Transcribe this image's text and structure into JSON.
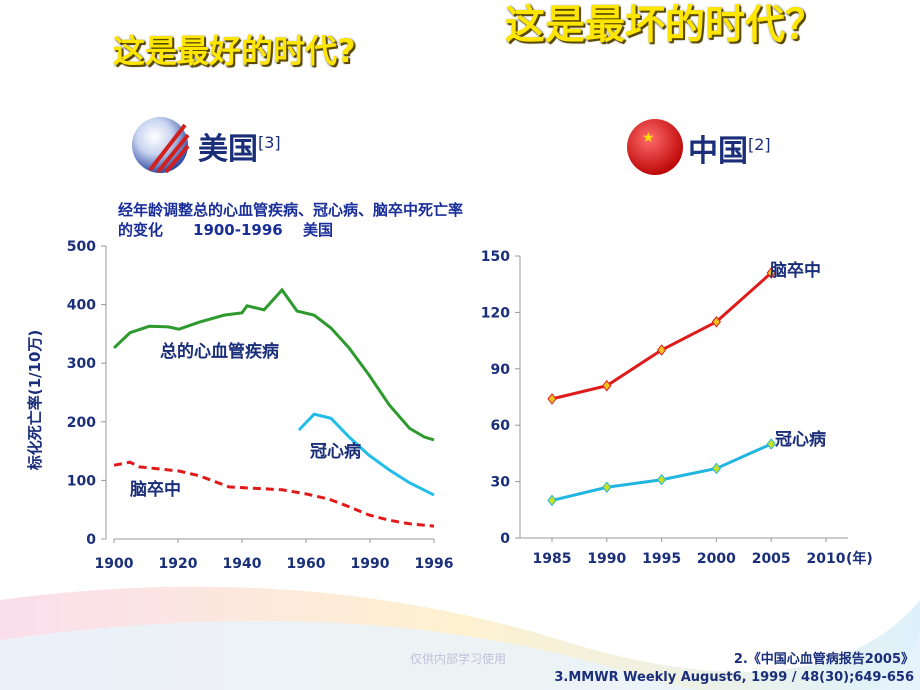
{
  "slide": {
    "title_left": "这是最好的时代?",
    "title_right": "这是最坏的时代？",
    "usa": {
      "label": "美国",
      "ref": "[3]"
    },
    "china": {
      "label": "中国",
      "ref": "[2]"
    },
    "footer": "仅供内部学习使用",
    "references": [
      "2.《中国心血管病报告2005》",
      "3.MMWR Weekly  August6, 1999 / 48(30);649-656"
    ]
  },
  "chart_data": [
    {
      "type": "line",
      "title": "经年龄调整总的心血管疾病、冠心病、脑卒中死亡率的变化　　1900-1996　 美国",
      "y_label": "标化死亡率(1/10万)",
      "xlim": [
        1900,
        1996
      ],
      "xticks": [
        1900,
        1920,
        1940,
        1960,
        1990,
        1996
      ],
      "ylim": [
        0,
        500
      ],
      "yticks": [
        0,
        100,
        200,
        300,
        400,
        500
      ],
      "series": [
        {
          "name": "总的心血管疾病",
          "color": "#2e9a2e",
          "dash": false,
          "x": [
            1900,
            1905,
            1911,
            1917,
            1920.3,
            1926.6,
            1934.4,
            1940,
            1941.6,
            1946.9,
            1952.5,
            1957.2,
            1963.8,
            1971.7,
            1980.2,
            1989.5,
            1991.8,
            1993.7,
            1995.1,
            1996
          ],
          "values": [
            326,
            352,
            363,
            362,
            358,
            370,
            382,
            386,
            398,
            391,
            425,
            389,
            382,
            360,
            326,
            280,
            229,
            189,
            174,
            169
          ]
        },
        {
          "name": "冠心病",
          "color": "#22bde8",
          "dash": false,
          "x": [
            1957.8,
            1963.8,
            1971.7,
            1980.2,
            1989.5,
            1991.8,
            1993.7,
            1996
          ],
          "values": [
            186,
            213,
            206,
            174,
            143,
            118,
            96,
            75
          ]
        },
        {
          "name": "脑卒中",
          "color": "#e01a1a",
          "dash": true,
          "x": [
            1900,
            1905,
            1908,
            1920.3,
            1926.6,
            1935.9,
            1942.2,
            1952.5,
            1960,
            1970.8,
            1980.2,
            1989.5,
            1991.8,
            1993.7,
            1996
          ],
          "values": [
            126,
            131,
            123,
            116,
            108,
            89,
            87,
            84,
            77,
            68,
            55,
            41,
            32,
            26,
            22
          ]
        }
      ]
    },
    {
      "type": "line",
      "x_label": "(年)",
      "xlim": [
        1982,
        2012
      ],
      "xticks": [
        1985,
        1990,
        1995,
        2000,
        2005,
        2010
      ],
      "ylim": [
        0,
        150
      ],
      "yticks": [
        0,
        30,
        60,
        90,
        120,
        150
      ],
      "series": [
        {
          "name": "脑卒中",
          "color": "#e01a1a",
          "marker": "#f0c020",
          "x": [
            1985,
            1990,
            1995,
            2000,
            2005
          ],
          "values": [
            74,
            81,
            100,
            115,
            141
          ]
        },
        {
          "name": "冠心病",
          "color": "#22b5e0",
          "marker": "#c8e020",
          "x": [
            1985,
            1990,
            1995,
            2000,
            2005
          ],
          "values": [
            20,
            27,
            31,
            37,
            50
          ]
        }
      ]
    }
  ]
}
